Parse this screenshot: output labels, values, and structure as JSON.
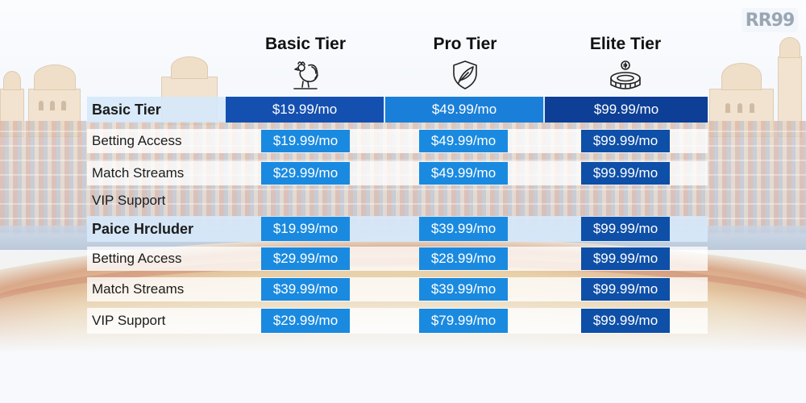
{
  "logo": {
    "text": "RR99"
  },
  "tiers": [
    {
      "name": "Basic Tier",
      "icon": "rooster-icon"
    },
    {
      "name": "Pro Tier",
      "icon": "shield-feather-icon"
    },
    {
      "name": "Elite Tier",
      "icon": "stadium-coin-icon"
    }
  ],
  "rows": [
    {
      "label": "Basic Tier",
      "section": true,
      "prices": [
        "$19.99/mo",
        "$49.99/mo",
        "$99.99/mo"
      ]
    },
    {
      "label": "Betting Access",
      "prices": [
        "$19.99/mo",
        "$49.99/mo",
        "$99.99/mo"
      ]
    },
    {
      "label": "Match Streams",
      "prices": [
        "$29.99/mo",
        "$49.99/mo",
        "$99.99/mo"
      ]
    },
    {
      "label": "VIP Support",
      "prices": []
    },
    {
      "label": "Paice Hrcluder",
      "section": true,
      "prices": [
        "$19.99/mo",
        "$39.99/mo",
        "$99.99/mo"
      ]
    },
    {
      "label": "Betting Access",
      "prices": [
        "$29.99/mo",
        "$28.99/mo",
        "$99.99/mo"
      ]
    },
    {
      "label": "Match Streams",
      "prices": [
        "$39.99/mo",
        "$39.99/mo",
        "$99.99/mo"
      ]
    },
    {
      "label": "VIP Support",
      "prices": [
        "$29.99/mo",
        "$79.99/mo",
        "$99.99/mo"
      ]
    }
  ],
  "colors": {
    "accent_blue": "#1a8ae0",
    "elite_blue": "#0e4fa8",
    "section_row": "#d6e8fa"
  }
}
